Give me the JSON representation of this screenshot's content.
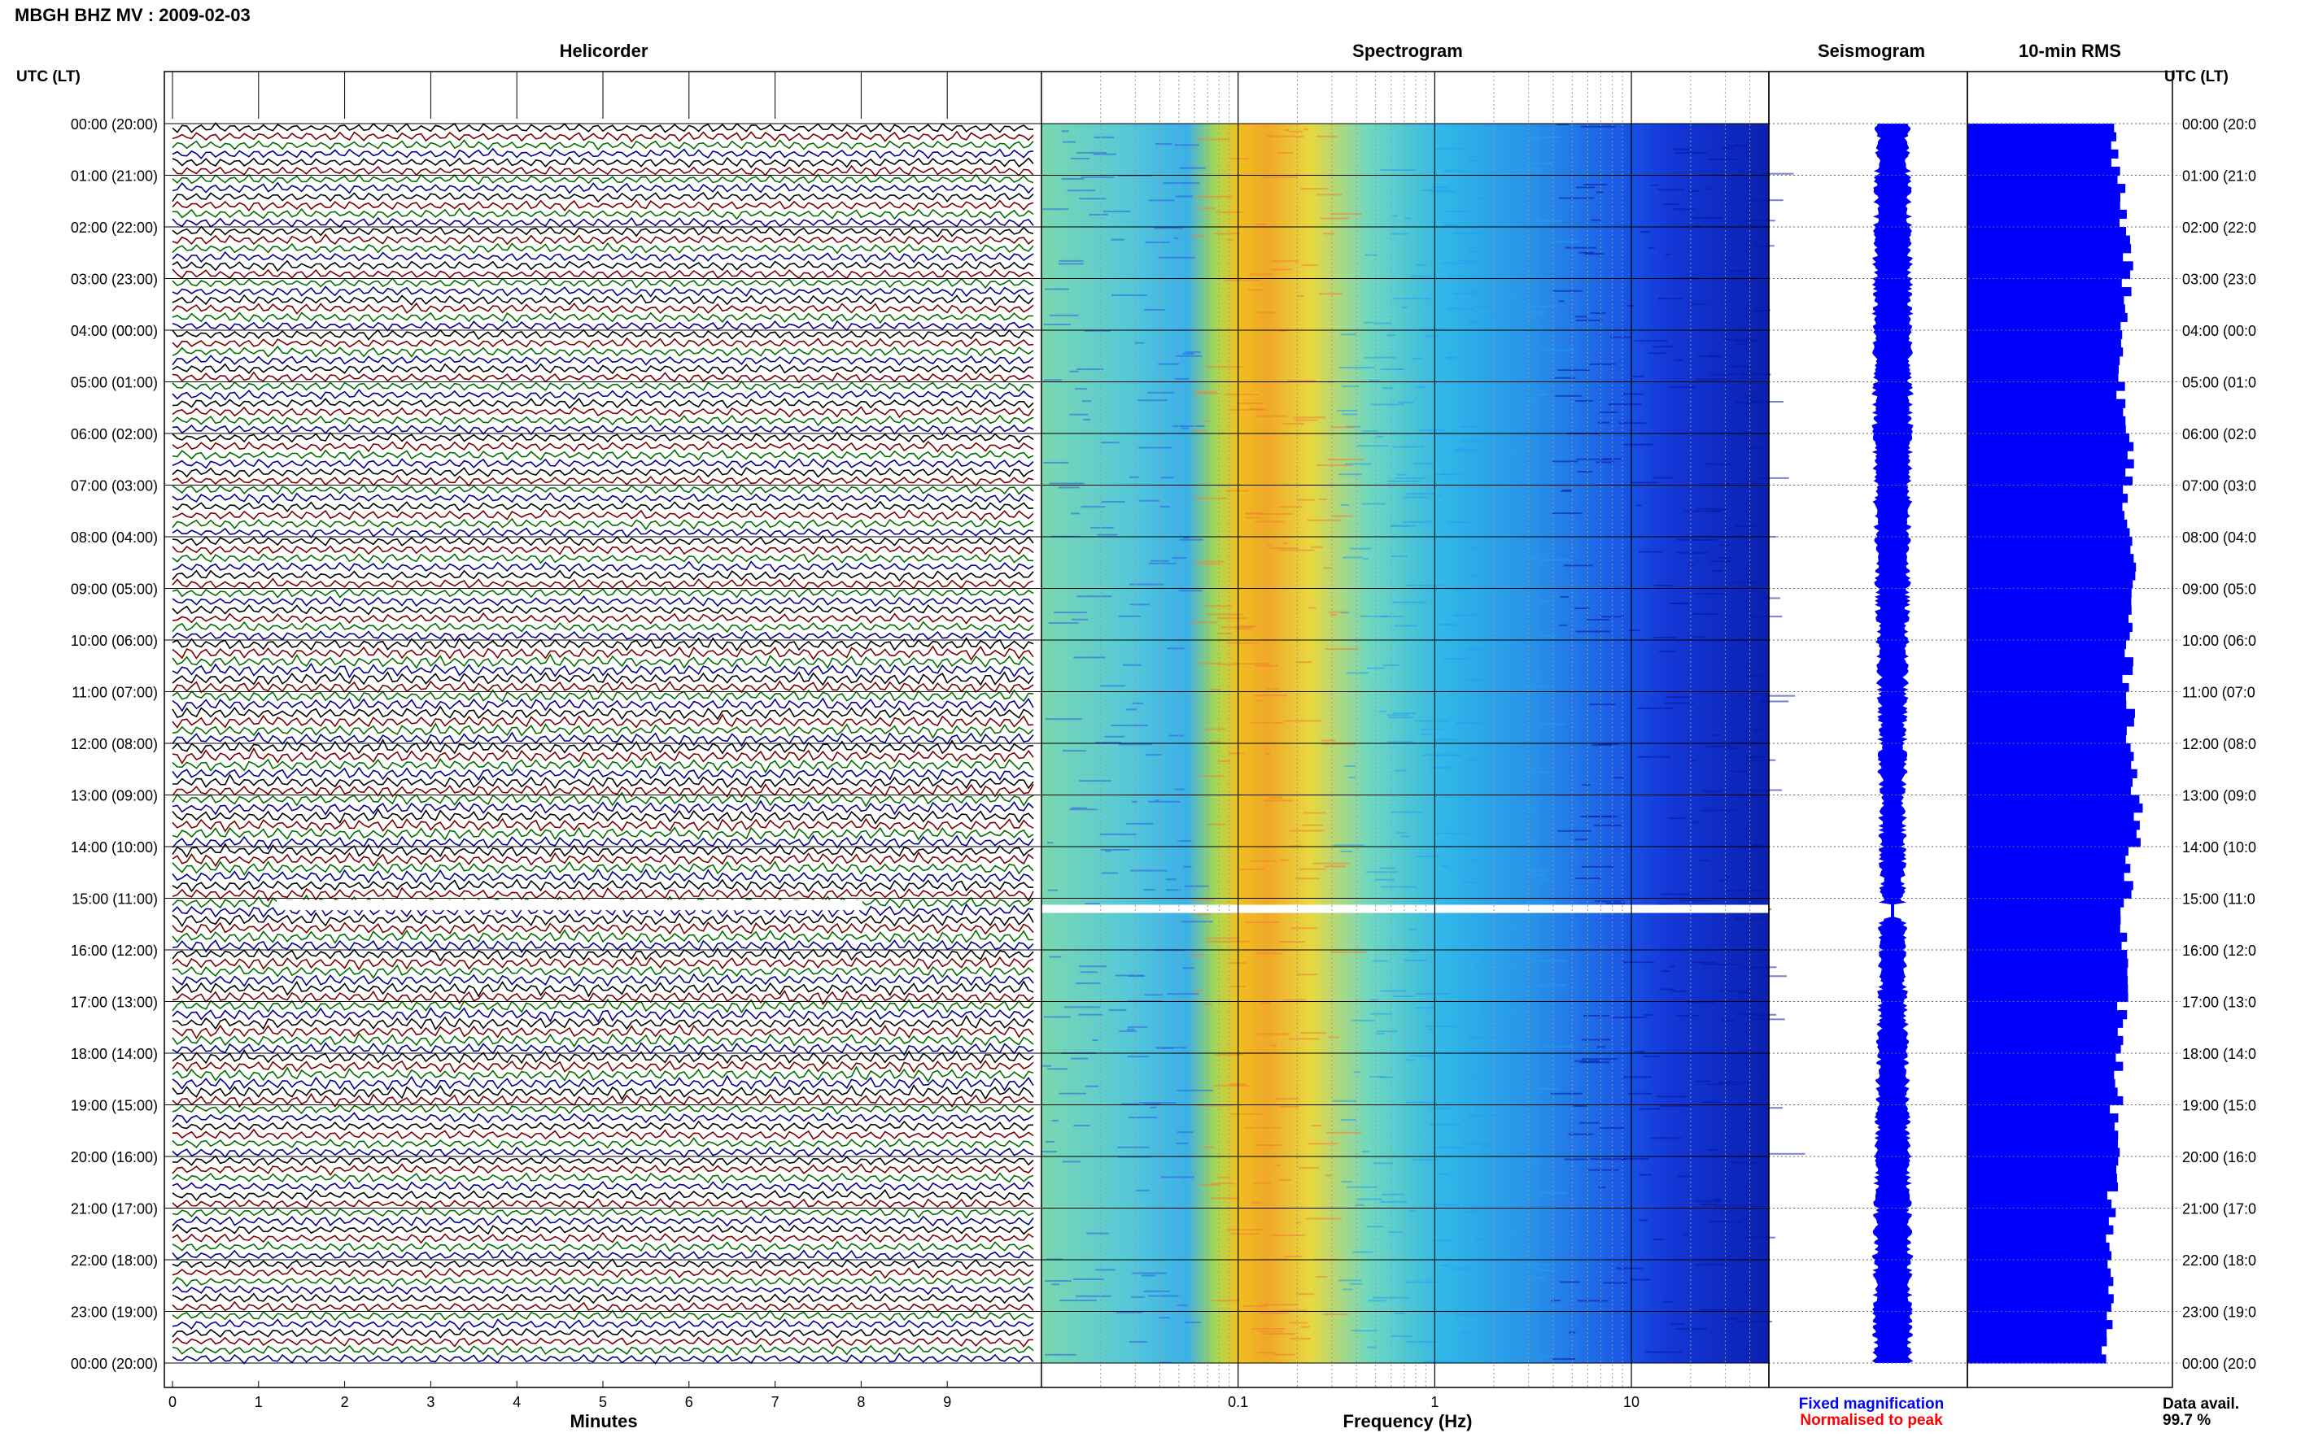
{
  "header": {
    "title": "MBGH BHZ MV : 2009-02-03",
    "utc_label_left": "UTC (LT)",
    "utc_label_right": "UTC (LT)"
  },
  "panels": {
    "helicorder": "Helicorder",
    "spectrogram": "Spectrogram",
    "seismogram": "Seismogram",
    "rms": "10-min RMS"
  },
  "footer": {
    "minutes_label": "Minutes",
    "frequency_label": "Frequency (Hz)",
    "legend_fixed": "Fixed magnification",
    "legend_normalised": "Normalised to peak",
    "data_avail_label": "Data avail.",
    "data_avail_value": "99.7 %"
  },
  "colors": {
    "trace_colors": [
      "#000000",
      "#7a0000",
      "#006e00",
      "#00008b"
    ],
    "spec_low": "#1a3fe0",
    "spec_mid": "#2bbce0",
    "spec_high": "#f0b020",
    "seismogram": "#0000ff",
    "rms": "#0000ff",
    "legend_fixed": "#0000ff",
    "legend_normalised": "#ff0000"
  },
  "time_labels_left": [
    "00:00 (20:00)",
    "01:00 (21:00)",
    "02:00 (22:00)",
    "03:00 (23:00)",
    "04:00 (00:00)",
    "05:00 (01:00)",
    "06:00 (02:00)",
    "07:00 (03:00)",
    "08:00 (04:00)",
    "09:00 (05:00)",
    "10:00 (06:00)",
    "11:00 (07:00)",
    "12:00 (08:00)",
    "13:00 (09:00)",
    "14:00 (10:00)",
    "15:00 (11:00)",
    "16:00 (12:00)",
    "17:00 (13:00)",
    "18:00 (14:00)",
    "19:00 (15:00)",
    "20:00 (16:00)",
    "21:00 (17:00)",
    "22:00 (18:00)",
    "23:00 (19:00)",
    "00:00 (20:00)"
  ],
  "time_labels_right": [
    "00:00 (20:0",
    "01:00 (21:0",
    "02:00 (22:0",
    "03:00 (23:0",
    "04:00 (00:0",
    "05:00 (01:0",
    "06:00 (02:0",
    "07:00 (03:0",
    "08:00 (04:0",
    "09:00 (05:0",
    "10:00 (06:0",
    "11:00 (07:0",
    "12:00 (08:0",
    "13:00 (09:0",
    "14:00 (10:0",
    "15:00 (11:0",
    "16:00 (12:0",
    "17:00 (13:0",
    "18:00 (14:0",
    "19:00 (15:0",
    "20:00 (16:0",
    "21:00 (17:0",
    "22:00 (18:0",
    "23:00 (19:0",
    "00:00 (20:0"
  ],
  "chart_data": [
    {
      "type": "line",
      "panel": "Helicorder",
      "xlabel": "Minutes",
      "x_ticks": [
        "0",
        "1",
        "2",
        "3",
        "4",
        "5",
        "6",
        "7",
        "8",
        "9"
      ],
      "xlim": [
        0,
        10
      ],
      "rows_per_hour": 6,
      "hours": 24,
      "gap_hour": 15
    },
    {
      "type": "heatmap",
      "panel": "Spectrogram",
      "xlabel": "Frequency (Hz)",
      "x_scale": "log",
      "x_ticks": [
        "0.1",
        "1",
        "10"
      ],
      "xlim": [
        0.01,
        50
      ],
      "peak_frequency_hz": 0.2,
      "gap_hour": 15
    },
    {
      "type": "area",
      "panel": "Seismogram",
      "legend": [
        "Fixed magnification",
        "Normalised to peak"
      ]
    },
    {
      "type": "bar",
      "panel": "10-min RMS",
      "bins_per_hour": 6,
      "hours": 24,
      "relative_levels": [
        0.78,
        0.82,
        0.85,
        0.84,
        0.8,
        0.82,
        0.86,
        0.84,
        0.88,
        0.86,
        0.85,
        0.87,
        0.88,
        0.9,
        0.86,
        0.84,
        0.83,
        0.82,
        0.8,
        0.78,
        0.77,
        0.76,
        0.75,
        0.74
      ]
    }
  ]
}
